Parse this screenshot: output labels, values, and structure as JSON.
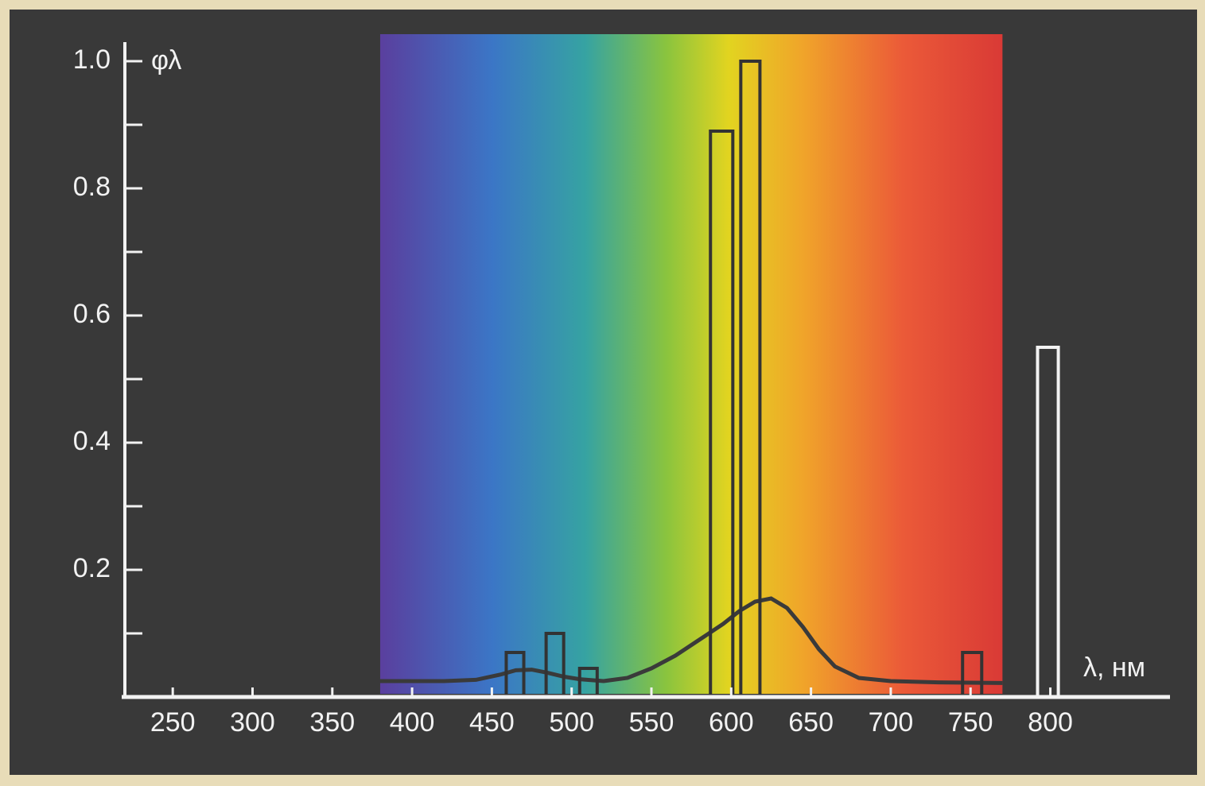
{
  "chart_data": {
    "type": "spectrum",
    "y_label": "φλ",
    "x_label": "λ, нм",
    "xlim": [
      220,
      875
    ],
    "xticks": [
      250,
      300,
      350,
      400,
      450,
      500,
      550,
      600,
      650,
      700,
      750,
      800
    ],
    "ylim": [
      0,
      1.03
    ],
    "yticks": [
      0.2,
      0.4,
      0.6,
      0.8,
      {
        "value": 1,
        "label": "1.0"
      }
    ],
    "yminorticks": [
      0.1,
      0.3,
      0.5,
      0.7,
      0.9
    ],
    "spectrum_range": [
      380,
      770
    ],
    "bars": {
      "x_start": [
        459,
        484,
        505,
        587,
        606,
        745,
        792
      ],
      "x_end": [
        470,
        495,
        516,
        601,
        618,
        757,
        805
      ],
      "values": [
        0.07,
        0.1,
        0.045,
        0.89,
        1.0,
        0.07,
        0.55
      ]
    },
    "curve": {
      "x": [
        380,
        420,
        440,
        455,
        465,
        475,
        485,
        495,
        505,
        520,
        535,
        550,
        565,
        580,
        595,
        605,
        615,
        625,
        635,
        645,
        655,
        665,
        680,
        700,
        730,
        770
      ],
      "y": [
        0.025,
        0.025,
        0.027,
        0.035,
        0.042,
        0.043,
        0.038,
        0.032,
        0.028,
        0.025,
        0.03,
        0.045,
        0.065,
        0.09,
        0.115,
        0.135,
        0.15,
        0.155,
        0.14,
        0.11,
        0.075,
        0.048,
        0.03,
        0.025,
        0.023,
        0.022
      ]
    }
  }
}
